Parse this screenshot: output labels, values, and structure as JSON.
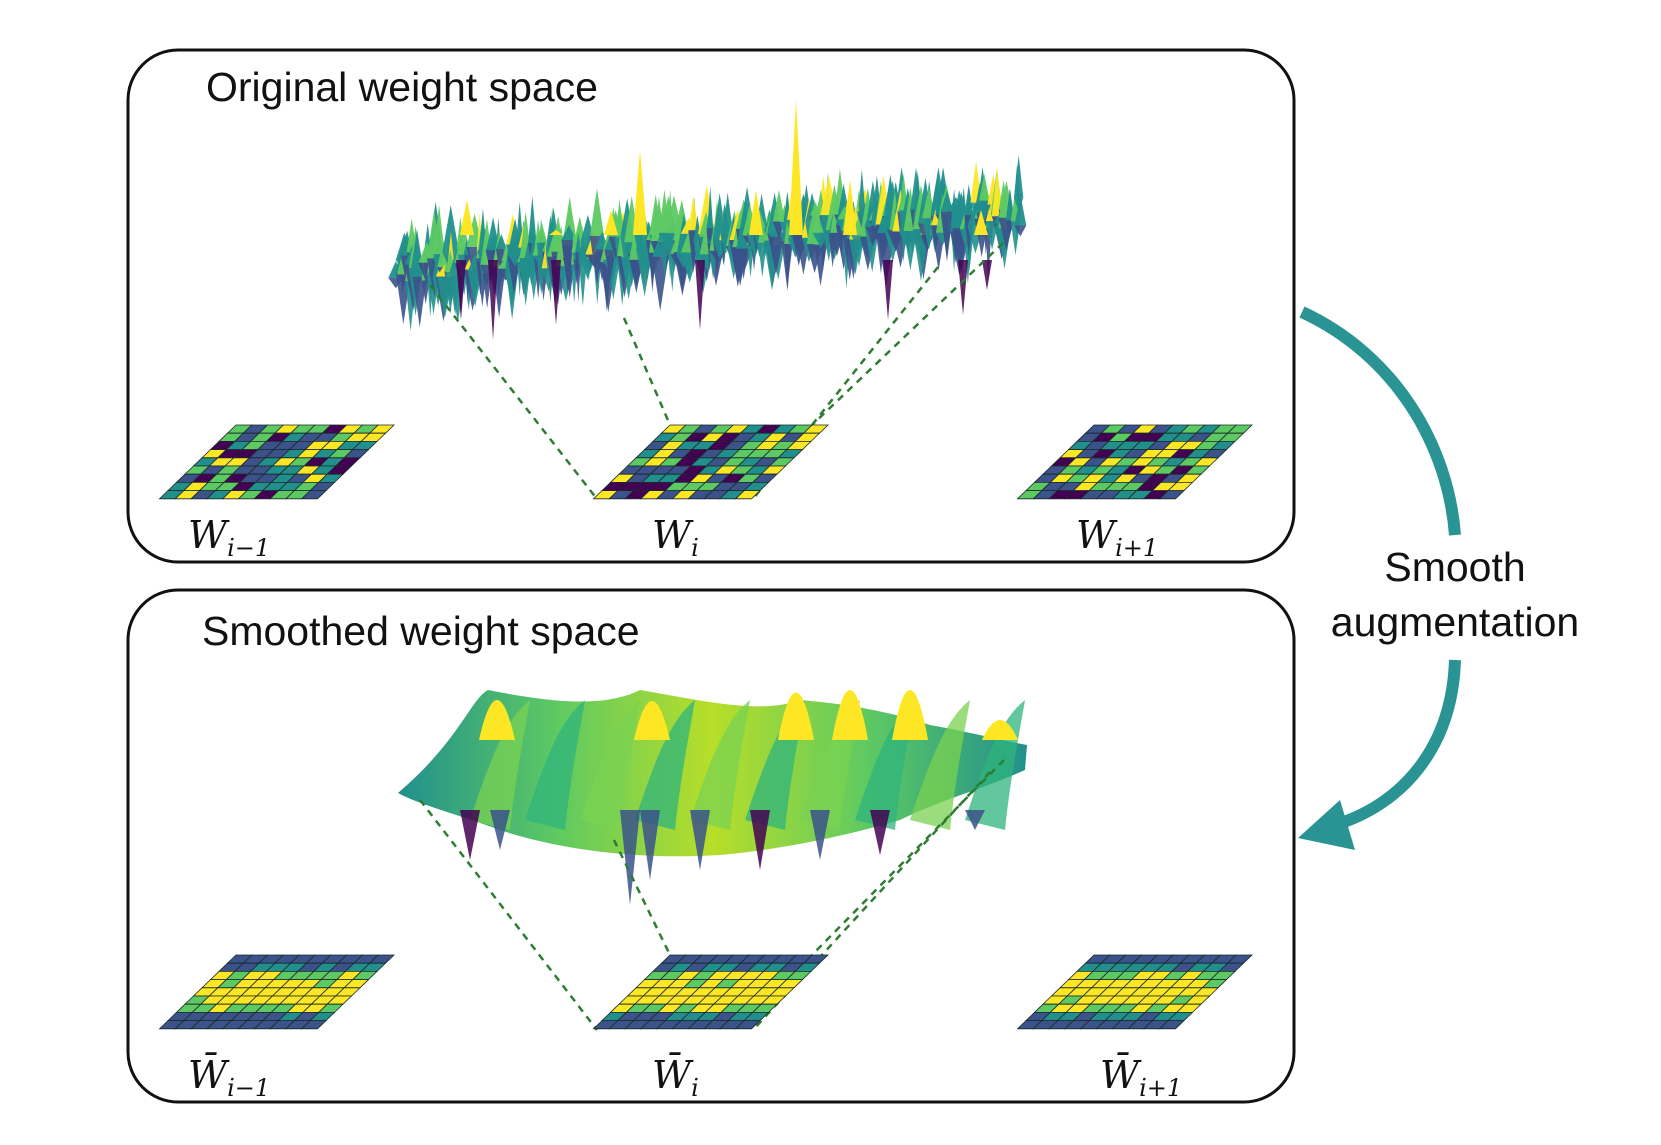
{
  "panels": {
    "original": {
      "title": "Original weight space",
      "labels": [
        {
          "main": "W",
          "sub": "i−1"
        },
        {
          "main": "W",
          "sub": "i"
        },
        {
          "main": "W",
          "sub": "i+1"
        }
      ]
    },
    "smoothed": {
      "title": "Smoothed weight space",
      "labels": [
        {
          "main": "W̄",
          "sub": "i−1"
        },
        {
          "main": "W̄",
          "sub": "i"
        },
        {
          "main": "W̄",
          "sub": "i+1"
        }
      ]
    }
  },
  "arrow": {
    "label_line1": "Smooth",
    "label_line2": "augmentation",
    "color": "#2a9393"
  },
  "colors": {
    "viridis": [
      "#440154",
      "#3b528b",
      "#21908d",
      "#5dc963",
      "#fde725"
    ],
    "connector": "#2e7d32",
    "border": "#111111"
  }
}
